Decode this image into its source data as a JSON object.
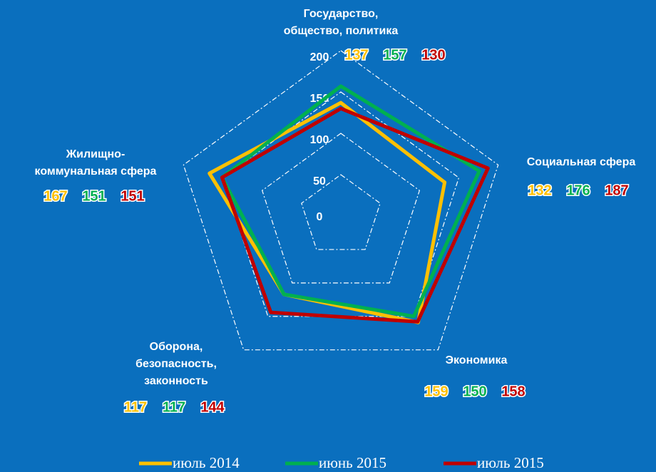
{
  "chart_data": {
    "type": "radar",
    "categories": [
      [
        "Государство,",
        "общество, политика"
      ],
      [
        "Социальная сфера"
      ],
      [
        "Экономика"
      ],
      [
        "Оборона,",
        "безопасность,",
        "законность"
      ],
      [
        "Жилищно-",
        "коммунальная сфера"
      ]
    ],
    "series": [
      {
        "name": "июль 2014",
        "color": "#ffc000",
        "values": [
          137,
          132,
          159,
          117,
          167
        ]
      },
      {
        "name": "июнь 2015",
        "color": "#00b050",
        "values": [
          157,
          176,
          150,
          117,
          151
        ]
      },
      {
        "name": "июль 2015",
        "color": "#c00000",
        "values": [
          130,
          187,
          158,
          144,
          151
        ]
      }
    ],
    "rlim": [
      0,
      200
    ],
    "rticks": [
      0,
      50,
      100,
      150,
      200
    ],
    "grid": true,
    "legend": "bottom"
  }
}
